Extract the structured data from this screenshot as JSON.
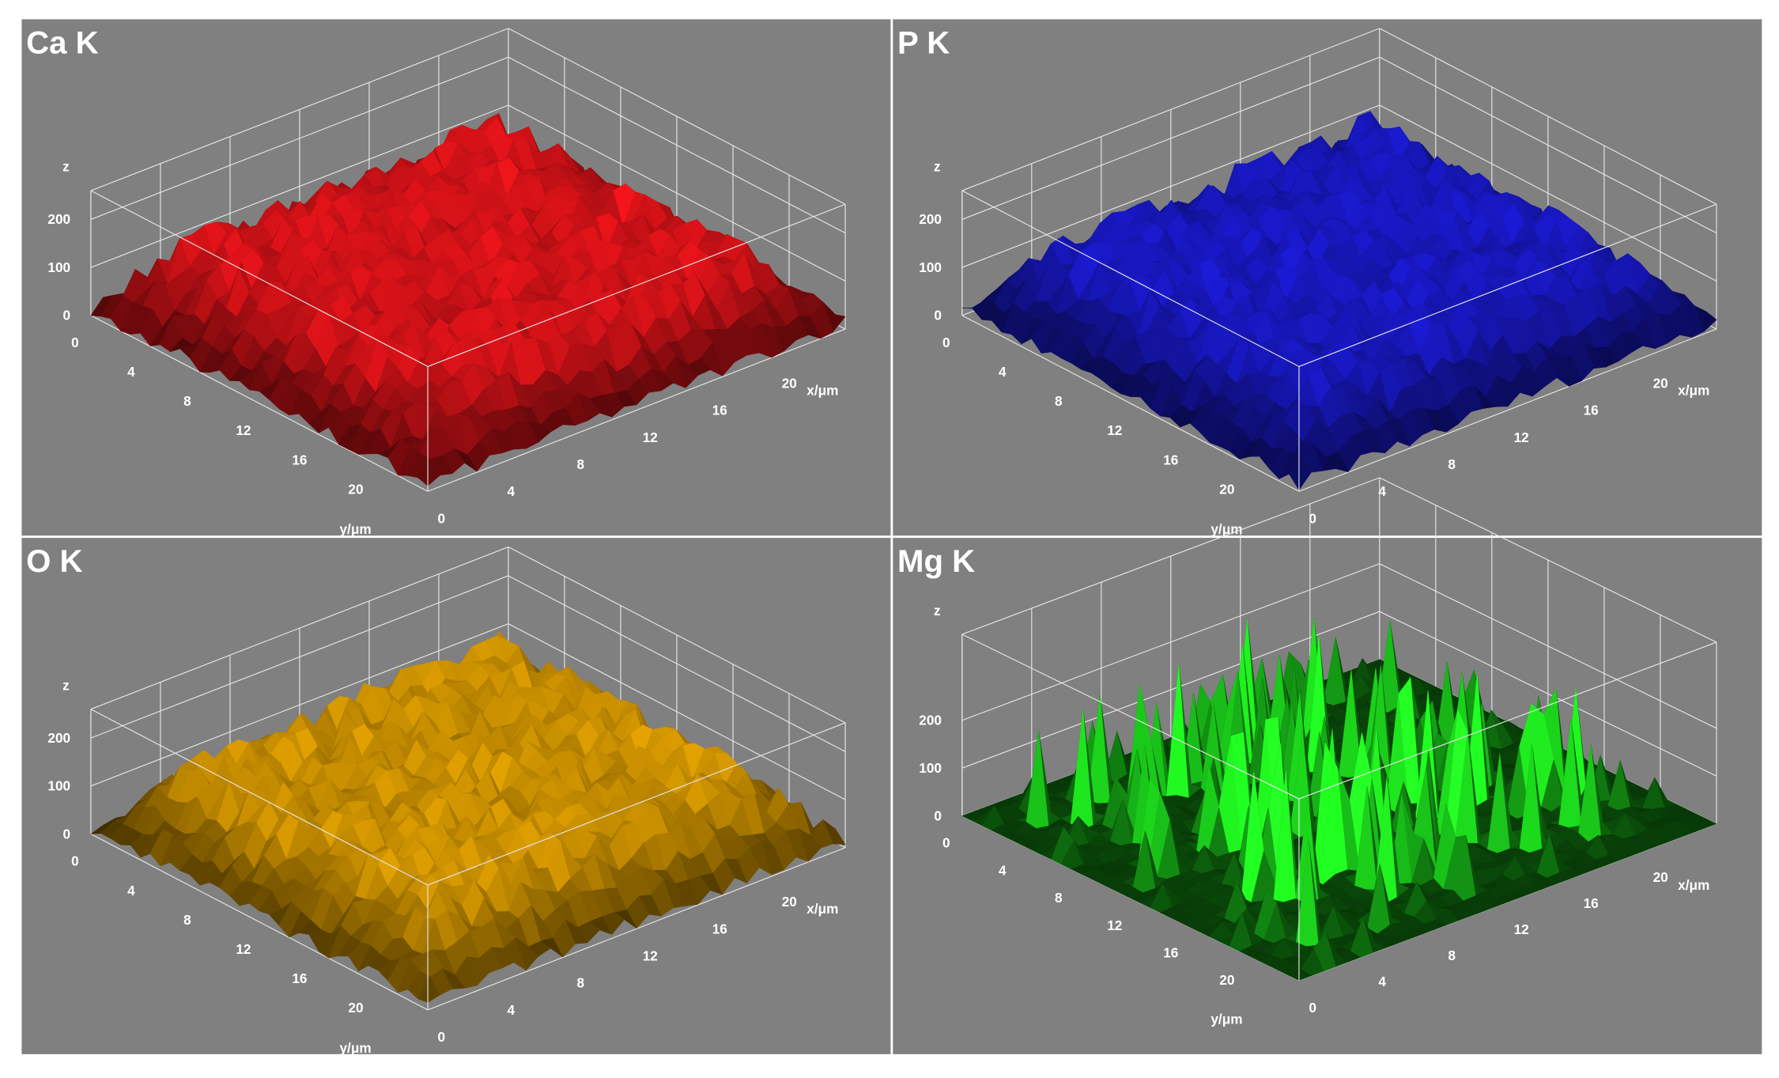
{
  "panels": [
    {
      "title": "Ca K",
      "color": "#e8141a",
      "z_label": "z",
      "x_label": "x/μm",
      "y_label": "y/μm",
      "z_ticks": [
        0,
        100,
        200
      ],
      "x_ticks": [
        0,
        4,
        8,
        12,
        16,
        20
      ],
      "y_ticks": [
        0,
        4,
        8,
        12,
        16,
        20
      ]
    },
    {
      "title": "P K",
      "color": "#1a1ad2",
      "z_label": "z",
      "x_label": "x/μm",
      "y_label": "y/μm",
      "z_ticks": [
        0,
        100,
        200
      ],
      "x_ticks": [
        0,
        4,
        8,
        12,
        16,
        20
      ],
      "y_ticks": [
        0,
        4,
        8,
        12,
        16,
        20
      ]
    },
    {
      "title": "O K",
      "color": "#e0a000",
      "z_label": "z",
      "x_label": "x/μm",
      "y_label": "y/μm",
      "z_ticks": [
        0,
        100,
        200
      ],
      "x_ticks": [
        0,
        4,
        8,
        12,
        16,
        20
      ],
      "y_ticks": [
        0,
        4,
        8,
        12,
        16,
        20
      ]
    },
    {
      "title": "Mg K",
      "color": "#1ee61e",
      "z_label": "z",
      "x_label": "x/μm",
      "y_label": "y/μm",
      "z_ticks": [
        0,
        100,
        200
      ],
      "x_ticks": [
        0,
        4,
        8,
        12,
        16,
        20
      ],
      "y_ticks": [
        0,
        4,
        8,
        12,
        16,
        20
      ]
    }
  ]
}
